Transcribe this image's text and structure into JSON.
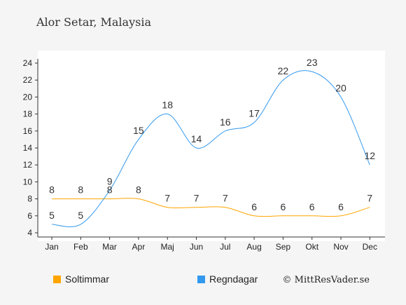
{
  "title": "Alor Setar, Malaysia",
  "credit": "© MittResVader.se",
  "chart_data": {
    "type": "line",
    "categories": [
      "Jan",
      "Feb",
      "Mar",
      "Apr",
      "Maj",
      "Jun",
      "Jul",
      "Aug",
      "Sep",
      "Okt",
      "Nov",
      "Dec"
    ],
    "ylim": [
      4,
      24
    ],
    "yticks": [
      4,
      6,
      8,
      10,
      12,
      14,
      16,
      18,
      20,
      22,
      24
    ],
    "grid": false,
    "legend_position": "bottom",
    "series": [
      {
        "name": "Soltimmar",
        "color": "#ffa500",
        "values": [
          8,
          8,
          8,
          8,
          7,
          7,
          7,
          6,
          6,
          6,
          6,
          7
        ]
      },
      {
        "name": "Regndagar",
        "color": "#3399ee",
        "values": [
          5,
          5,
          9,
          15,
          18,
          14,
          16,
          17,
          22,
          23,
          20,
          12
        ]
      }
    ]
  }
}
